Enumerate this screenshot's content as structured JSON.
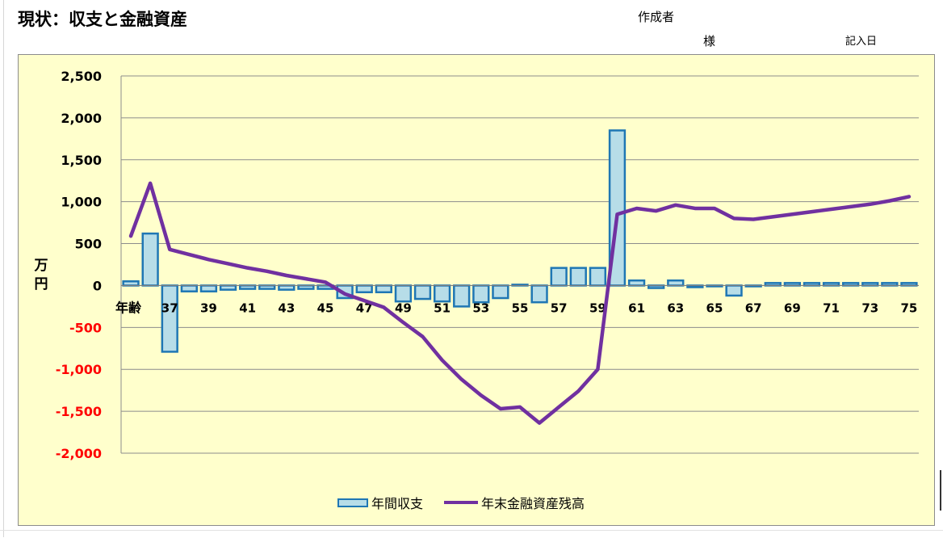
{
  "header": {
    "title": "現状：収支と金融資産",
    "creator_label": "作成者",
    "honorific": "様",
    "entry_date_label": "記入日"
  },
  "chart_data": {
    "type": "bar+line",
    "ylabel": "万円",
    "age_label": "年齢",
    "ylim": [
      -2000,
      2500
    ],
    "yticks": [
      2500,
      2000,
      1500,
      1000,
      500,
      0,
      -500,
      -1000,
      -1500,
      -2000
    ],
    "ytick_labels": [
      "2,500",
      "2,000",
      "1,500",
      "1,000",
      "500",
      "0",
      "-500",
      "-1,000",
      "-1,500",
      "-2,000"
    ],
    "negative_tick_color": "#ff0000",
    "categories": [
      35,
      36,
      37,
      38,
      39,
      40,
      41,
      42,
      43,
      44,
      45,
      46,
      47,
      48,
      49,
      50,
      51,
      52,
      53,
      54,
      55,
      56,
      57,
      58,
      59,
      60,
      61,
      62,
      63,
      64,
      65,
      66,
      67,
      68,
      69,
      70,
      71,
      72,
      73,
      74,
      75
    ],
    "xtick_labels": [
      "37",
      "39",
      "41",
      "43",
      "45",
      "47",
      "49",
      "51",
      "53",
      "55",
      "57",
      "59",
      "61",
      "63",
      "65",
      "67",
      "69",
      "71",
      "73",
      "75"
    ],
    "series": [
      {
        "name": "年間収支",
        "type": "bar",
        "color": "#b7dde8",
        "edge_color": "#1f77b4",
        "values": [
          50,
          620,
          -790,
          -70,
          -70,
          -50,
          -40,
          -40,
          -50,
          -40,
          -40,
          -150,
          -80,
          -80,
          -190,
          -160,
          -190,
          -250,
          -200,
          -150,
          10,
          -200,
          210,
          210,
          210,
          1850,
          60,
          -30,
          60,
          -20,
          -10,
          -120,
          -10,
          30,
          30,
          30,
          30,
          30,
          30,
          30,
          30
        ]
      },
      {
        "name": "年末金融資産残高",
        "type": "line",
        "color": "#7030a0",
        "values": [
          590,
          1220,
          430,
          370,
          310,
          260,
          210,
          170,
          120,
          80,
          40,
          -100,
          -180,
          -260,
          -440,
          -610,
          -890,
          -1120,
          -1310,
          -1470,
          -1450,
          -1640,
          -1450,
          -1260,
          -1000,
          850,
          920,
          890,
          960,
          920,
          920,
          800,
          790,
          820,
          850,
          880,
          910,
          940,
          970,
          1010,
          1060
        ]
      }
    ],
    "legend": "bottom-center",
    "grid": true
  }
}
